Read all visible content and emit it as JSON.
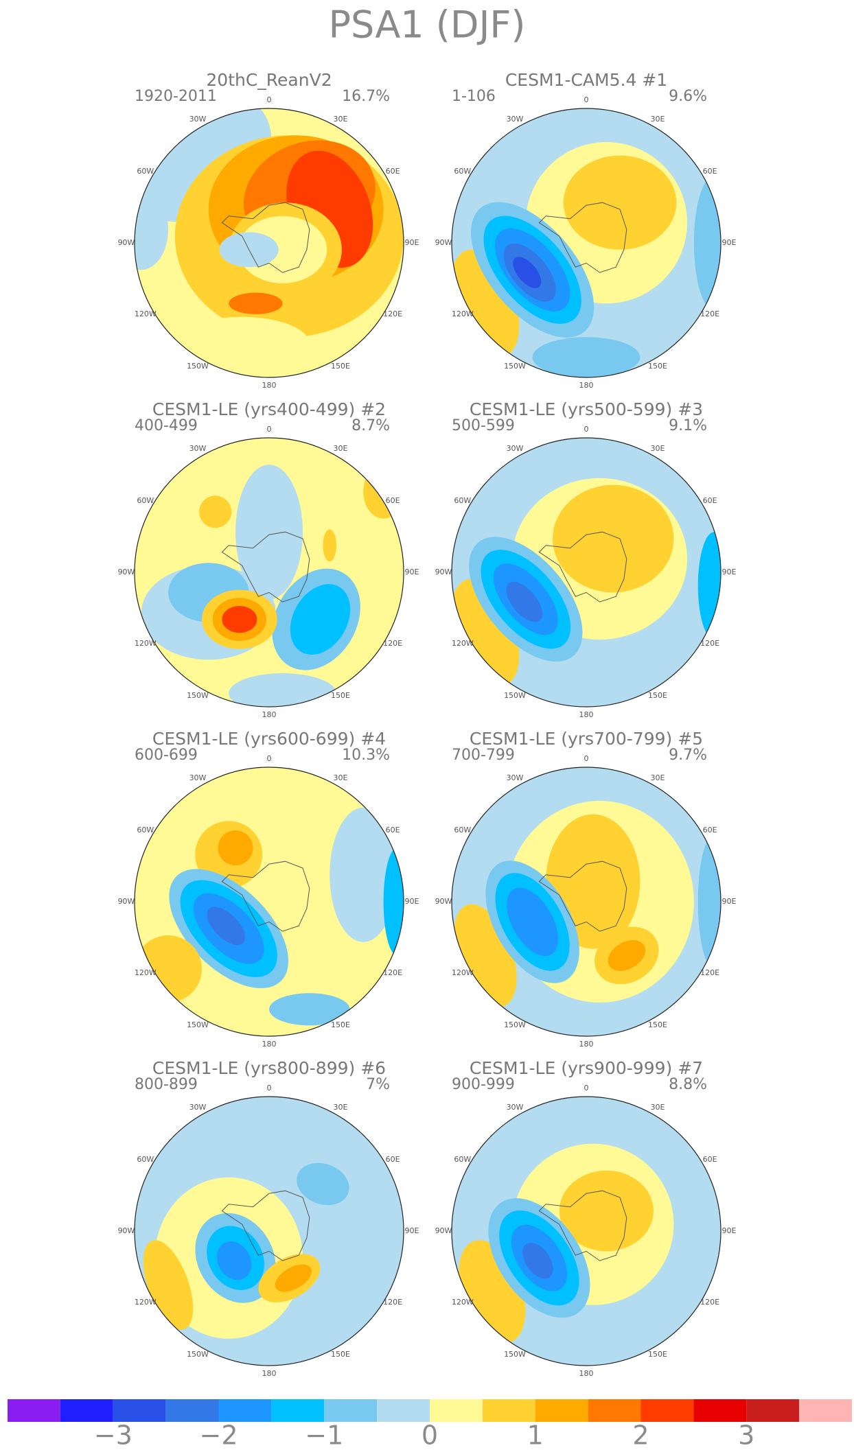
{
  "title": "PSA1 (DJF)",
  "panels": [
    {
      "title": "20thC_ReanV2",
      "period": "1920-2011",
      "variance": "16.7%"
    },
    {
      "title": "CESM1-CAM5.4        #1",
      "period": "1-106",
      "variance": "9.6%"
    },
    {
      "title": "CESM1-LE (yrs400-499) #2",
      "period": "400-499",
      "variance": "8.7%"
    },
    {
      "title": "CESM1-LE (yrs500-599) #3",
      "period": "500-599",
      "variance": "9.1%"
    },
    {
      "title": "CESM1-LE (yrs600-699) #4",
      "period": "600-699",
      "variance": "10.3%"
    },
    {
      "title": "CESM1-LE (yrs700-799) #5",
      "period": "700-799",
      "variance": "9.7%"
    },
    {
      "title": "CESM1-LE (yrs800-899) #6",
      "period": "800-899",
      "variance": "7%"
    },
    {
      "title": "CESM1-LE (yrs900-999) #7",
      "period": "900-999",
      "variance": "8.8%"
    }
  ],
  "longitude_labels": [
    "0",
    "30E",
    "60E",
    "90E",
    "120E",
    "150E",
    "180",
    "150W",
    "120W",
    "90W",
    "60W",
    "30W"
  ],
  "colorbar": {
    "colors": [
      "#8a1ef0",
      "#1e1eff",
      "#2850e6",
      "#3278e6",
      "#1e96ff",
      "#00c0ff",
      "#78c8f0",
      "#b4dcf0",
      "#fffa96",
      "#ffd232",
      "#ffaa00",
      "#ff7800",
      "#ff3c00",
      "#e60000",
      "#c81e1e",
      "#ffb4b4"
    ],
    "labels": [
      "−3",
      "−2",
      "−1",
      "0",
      "1",
      "2",
      "3"
    ]
  }
}
